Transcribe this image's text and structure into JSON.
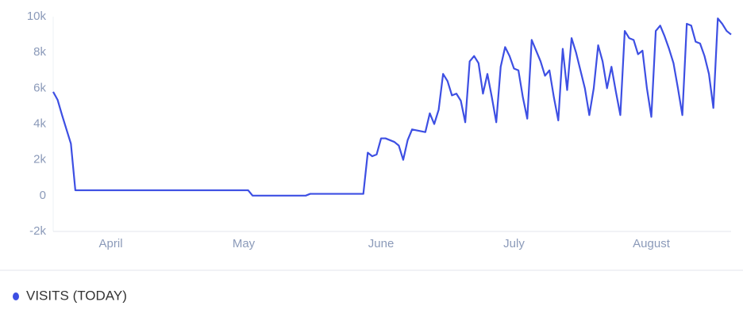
{
  "chart_data": {
    "type": "line",
    "categories": [
      null,
      null,
      null,
      null,
      null,
      null,
      null,
      null,
      null,
      null,
      null,
      null,
      null,
      "April",
      null,
      null,
      null,
      null,
      null,
      null,
      null,
      null,
      null,
      null,
      null,
      null,
      null,
      null,
      null,
      null,
      null,
      null,
      null,
      null,
      null,
      null,
      null,
      null,
      null,
      null,
      null,
      null,
      null,
      "May",
      null,
      null,
      null,
      null,
      null,
      null,
      null,
      null,
      null,
      null,
      null,
      null,
      null,
      null,
      null,
      null,
      null,
      null,
      null,
      null,
      null,
      null,
      null,
      null,
      null,
      null,
      null,
      null,
      null,
      null,
      "June",
      null,
      null,
      null,
      null,
      null,
      null,
      null,
      null,
      null,
      null,
      null,
      null,
      null,
      null,
      null,
      null,
      null,
      null,
      null,
      null,
      null,
      null,
      null,
      null,
      null,
      null,
      null,
      null,
      null,
      "July",
      null,
      null,
      null,
      null,
      null,
      null,
      null,
      null,
      null,
      null,
      null,
      null,
      null,
      null,
      null,
      null,
      null,
      null,
      null,
      null,
      null,
      null,
      null,
      null,
      null,
      null,
      null,
      null,
      null,
      null,
      "August",
      null,
      null,
      null,
      null,
      null,
      null,
      null,
      null,
      null,
      null,
      null,
      null,
      null,
      null,
      null,
      null,
      null,
      null
    ],
    "series": [
      {
        "name": "VISITS (TODAY)",
        "color": "#3d4fe3",
        "values": [
          5800,
          5350,
          4500,
          3700,
          2900,
          300,
          300,
          300,
          300,
          300,
          300,
          300,
          300,
          300,
          300,
          300,
          300,
          300,
          300,
          300,
          300,
          300,
          300,
          300,
          300,
          300,
          300,
          300,
          300,
          300,
          300,
          300,
          300,
          300,
          300,
          300,
          300,
          300,
          300,
          300,
          300,
          300,
          300,
          300,
          300,
          0,
          0,
          0,
          0,
          0,
          0,
          0,
          0,
          0,
          0,
          0,
          0,
          0,
          100,
          100,
          100,
          100,
          100,
          100,
          100,
          100,
          100,
          100,
          100,
          100,
          100,
          2400,
          2200,
          2300,
          3200,
          3200,
          3100,
          3000,
          2800,
          2000,
          3100,
          3700,
          3650,
          3600,
          3550,
          4600,
          4000,
          4800,
          6800,
          6400,
          5600,
          5700,
          5300,
          4100,
          7500,
          7800,
          7400,
          5700,
          6800,
          5500,
          4100,
          7200,
          8300,
          7800,
          7100,
          7000,
          5500,
          4300,
          8700,
          8100,
          7500,
          6700,
          7000,
          5500,
          4200,
          8200,
          5900,
          8800,
          8000,
          7000,
          6000,
          4500,
          6000,
          8400,
          7500,
          6000,
          7200,
          5800,
          4500,
          9200,
          8800,
          8700,
          7900,
          8100,
          6000,
          4400,
          9200,
          9500,
          8900,
          8200,
          7400,
          6000,
          4500,
          9600,
          9500,
          8600,
          8500,
          7800,
          6800,
          4900,
          9900,
          9600,
          9200,
          9000
        ]
      }
    ],
    "ylim": [
      -2000,
      10000
    ],
    "yticks": [
      {
        "value": -2000,
        "label": "-2k"
      },
      0,
      {
        "value": 2000,
        "label": "2k"
      },
      {
        "value": 4000,
        "label": "4k"
      },
      {
        "value": 6000,
        "label": "6k"
      },
      {
        "value": 8000,
        "label": "8k"
      },
      {
        "value": 10000,
        "label": "10k"
      }
    ],
    "grid": false
  }
}
